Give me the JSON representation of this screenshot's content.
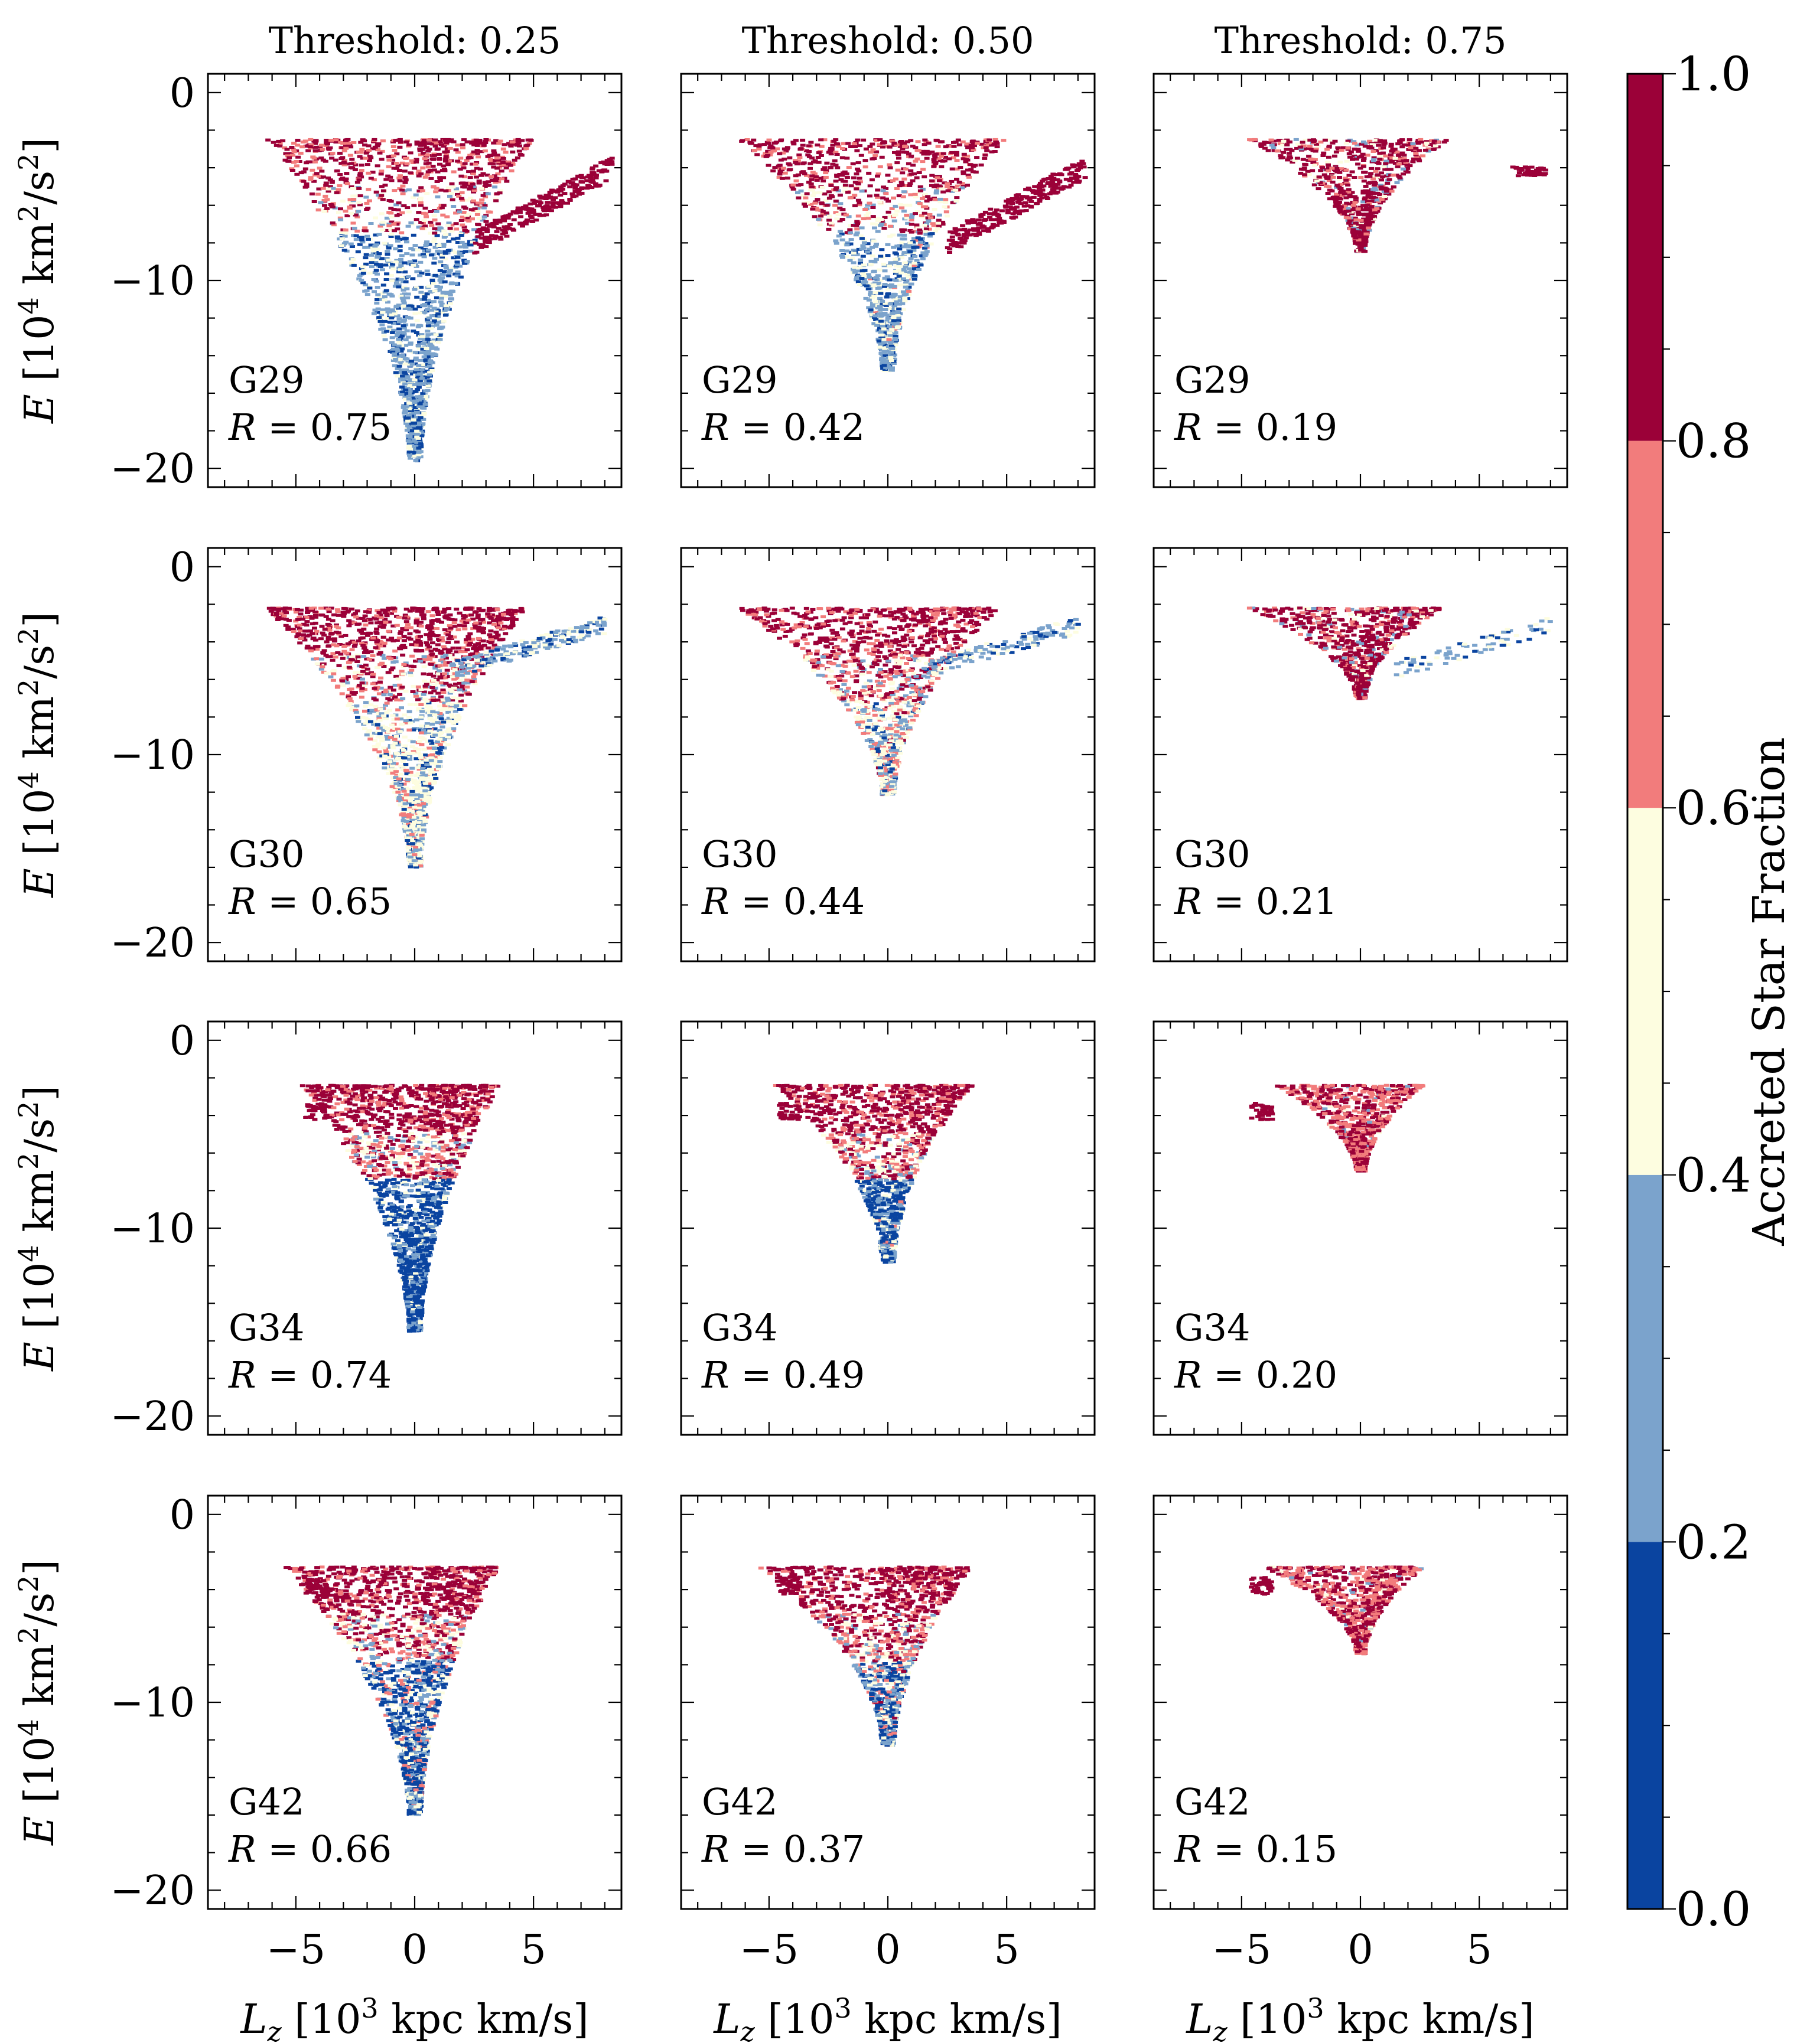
{
  "chart_data": {
    "type": "scatter",
    "description_axes": {
      "xlabel_main": "L",
      "xlabel_sub": "z",
      "xlabel_rest_open": " [10",
      "xlabel_sup": "3",
      "xlabel_rest_close": " kpc km/s]",
      "ylabel_main": "E",
      "ylabel_rest_open": " [10",
      "ylabel_sup1": "4",
      "ylabel_mid": " km",
      "ylabel_sup2": "2",
      "ylabel_rest_close": "/s",
      "ylabel_sup3": "2",
      "ylabel_end": "]"
    },
    "xlim": [
      -8.7,
      8.7
    ],
    "ylim": [
      -21,
      1
    ],
    "xticks": [
      -5,
      0,
      5
    ],
    "xtick_labels": [
      "−5",
      "0",
      "5"
    ],
    "yticks": [
      0,
      -10,
      -20
    ],
    "ytick_labels": [
      "0",
      "−10",
      "−20"
    ],
    "columns": [
      {
        "title": "Threshold: 0.25"
      },
      {
        "title": "Threshold: 0.50"
      },
      {
        "title": "Threshold: 0.75"
      }
    ],
    "rows": [
      "G29",
      "G30",
      "G34",
      "G42"
    ],
    "panels": [
      {
        "galaxy": "G29",
        "threshold": 0.25,
        "R_label": "R",
        "R_value": " = 0.75"
      },
      {
        "galaxy": "G29",
        "threshold": 0.5,
        "R_label": "R",
        "R_value": " = 0.42"
      },
      {
        "galaxy": "G29",
        "threshold": 0.75,
        "R_label": "R",
        "R_value": " = 0.19"
      },
      {
        "galaxy": "G30",
        "threshold": 0.25,
        "R_label": "R",
        "R_value": " = 0.65"
      },
      {
        "galaxy": "G30",
        "threshold": 0.5,
        "R_label": "R",
        "R_value": " = 0.44"
      },
      {
        "galaxy": "G30",
        "threshold": 0.75,
        "R_label": "R",
        "R_value": " = 0.21"
      },
      {
        "galaxy": "G34",
        "threshold": 0.25,
        "R_label": "R",
        "R_value": " = 0.74"
      },
      {
        "galaxy": "G34",
        "threshold": 0.5,
        "R_label": "R",
        "R_value": " = 0.49"
      },
      {
        "galaxy": "G34",
        "threshold": 0.75,
        "R_label": "R",
        "R_value": " = 0.20"
      },
      {
        "galaxy": "G42",
        "threshold": 0.25,
        "R_label": "R",
        "R_value": " = 0.66"
      },
      {
        "galaxy": "G42",
        "threshold": 0.5,
        "R_label": "R",
        "R_value": " = 0.37"
      },
      {
        "galaxy": "G42",
        "threshold": 0.75,
        "R_label": "R",
        "R_value": " = 0.15"
      }
    ],
    "colorbar": {
      "label": "Accreted Star Fraction",
      "range": [
        0.0,
        1.0
      ],
      "tick_labels": [
        "0.0",
        "0.2",
        "0.4",
        "0.6",
        "0.8",
        "1.0"
      ],
      "bins": [
        {
          "from": 0.0,
          "to": 0.2,
          "color": "#0a44a0"
        },
        {
          "from": 0.2,
          "to": 0.4,
          "color": "#7ba3cc"
        },
        {
          "from": 0.4,
          "to": 0.6,
          "color": "#fdfde0"
        },
        {
          "from": 0.6,
          "to": 0.8,
          "color": "#f27c7c"
        },
        {
          "from": 0.8,
          "to": 1.0,
          "color": "#9b0138"
        }
      ]
    }
  }
}
